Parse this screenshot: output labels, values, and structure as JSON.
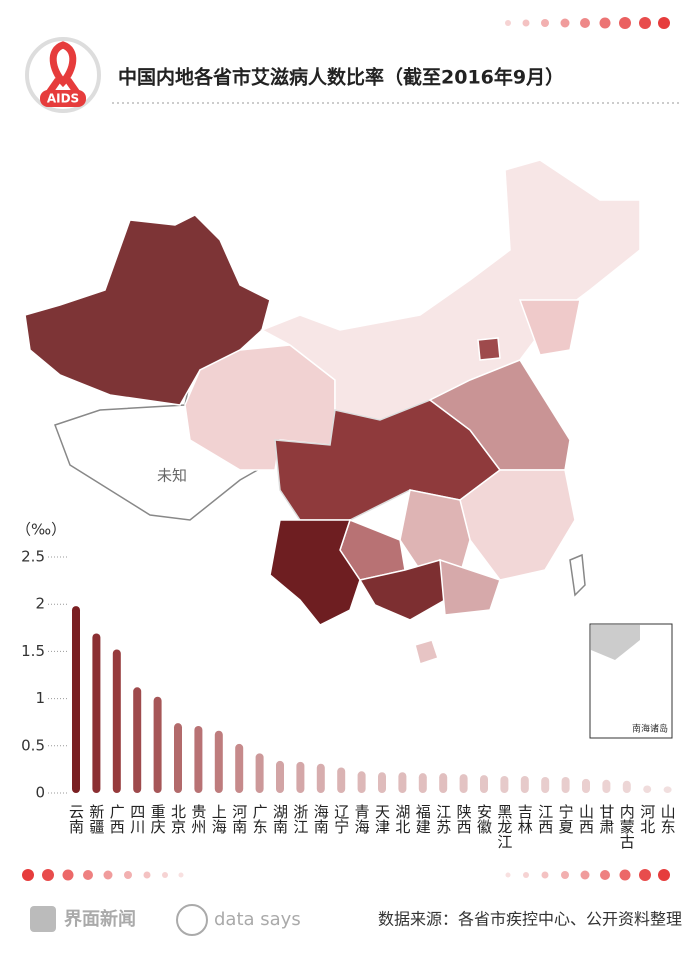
{
  "logo": "AIDS",
  "map": {
    "unknown_label": "未知",
    "inset_label": "南海诸岛"
  },
  "chart_data": {
    "type": "bar",
    "title": "中国内地各省市艾滋病人数比率（截至2016年9月）",
    "y_label": "（‰）",
    "categories": [
      "云南",
      "新疆",
      "广西",
      "四川",
      "重庆",
      "北京",
      "贵州",
      "上海",
      "河南",
      "广东",
      "湖南",
      "浙江",
      "海南",
      "辽宁",
      "青海",
      "天津",
      "湖北",
      "福建",
      "江苏",
      "陕西",
      "安徽",
      "黑龙江",
      "吉林",
      "江西",
      "宁夏",
      "山西",
      "甘肃",
      "内蒙古",
      "河北",
      "山东"
    ],
    "values": [
      1.98,
      1.69,
      1.52,
      1.12,
      1.02,
      0.74,
      0.71,
      0.66,
      0.52,
      0.42,
      0.34,
      0.33,
      0.31,
      0.27,
      0.23,
      0.22,
      0.22,
      0.21,
      0.21,
      0.2,
      0.19,
      0.18,
      0.18,
      0.17,
      0.17,
      0.15,
      0.14,
      0.13,
      0.08,
      0.07
    ],
    "colors": [
      "#7a1f22",
      "#8b2f32",
      "#963a3c",
      "#9e4a4c",
      "#a65658",
      "#b26a6b",
      "#b87274",
      "#be7c7d",
      "#c68a8b",
      "#cc9899",
      "#d2a4a5",
      "#d4a7a8",
      "#d7adae",
      "#dab3b3",
      "#ddb8b8",
      "#dfbcbc",
      "#dfbcbc",
      "#e1bfbf",
      "#e1bfbf",
      "#e3c3c3",
      "#e4c6c6",
      "#e6caca",
      "#e6caca",
      "#e8cdcd",
      "#e8cdcd",
      "#eacfcf",
      "#ecd3d3",
      "#edd6d6",
      "#f0dcdc",
      "#f1dfdf"
    ],
    "ylim": [
      0,
      2.5
    ],
    "yticks": [
      0,
      0.5,
      1,
      1.5,
      2,
      2.5
    ],
    "grid": true
  },
  "footer": {
    "brand": "界面新闻",
    "brand2": "data says",
    "source": "数据来源：各省市疾控中心、公开资料整理"
  }
}
